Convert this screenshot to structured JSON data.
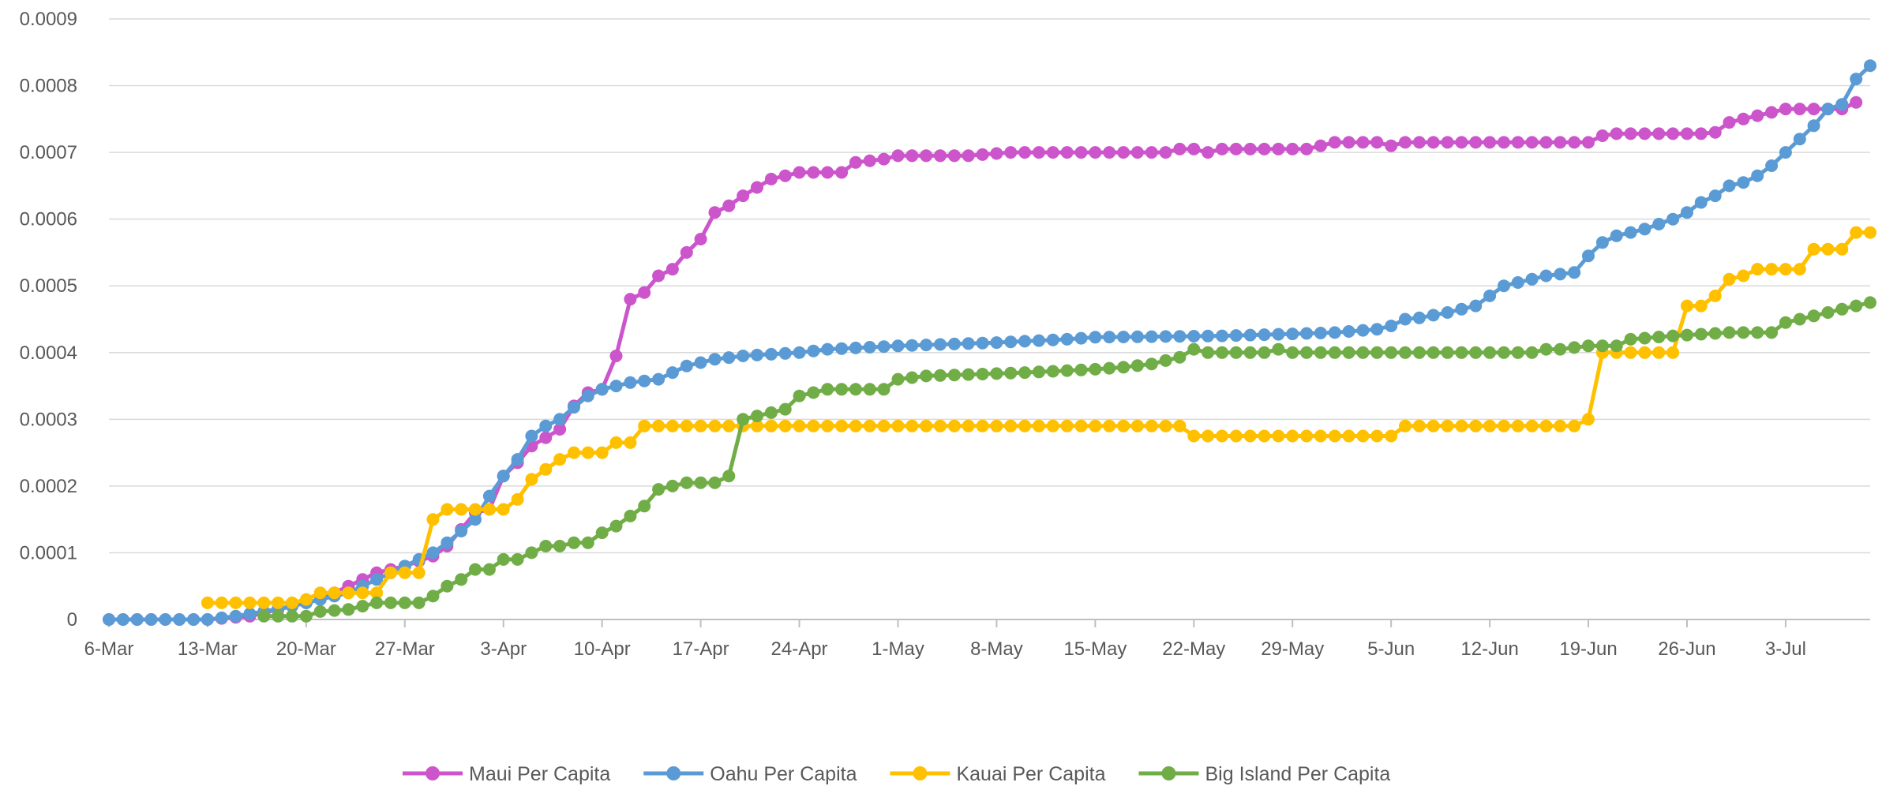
{
  "chart_data": {
    "type": "line",
    "title": "",
    "xlabel": "",
    "ylabel": "",
    "x_start": "6-Mar",
    "x_tick_labels": [
      "6-Mar",
      "13-Mar",
      "20-Mar",
      "27-Mar",
      "3-Apr",
      "10-Apr",
      "17-Apr",
      "24-Apr",
      "1-May",
      "8-May",
      "15-May",
      "22-May",
      "29-May",
      "5-Jun",
      "12-Jun",
      "19-Jun",
      "26-Jun",
      "3-Jul"
    ],
    "y_tick_labels": [
      "0",
      "0.0001",
      "0.0002",
      "0.0003",
      "0.0004",
      "0.0005",
      "0.0006",
      "0.0007",
      "0.0008",
      "0.0009"
    ],
    "ylim": [
      0,
      0.0009
    ],
    "grid": "horizontal",
    "legend_position": "bottom",
    "series": [
      {
        "name": "Maui Per Capita",
        "color": "#CC55CC",
        "points": [
          [
            "6-Mar",
            0
          ],
          [
            "13-Mar",
            0
          ],
          [
            "16-Mar",
            5e-06
          ],
          [
            "19-Mar",
            2e-05
          ],
          [
            "21-Mar",
            3e-05
          ],
          [
            "23-Mar",
            5e-05
          ],
          [
            "25-Mar",
            7e-05
          ],
          [
            "27-Mar",
            8e-05
          ],
          [
            "29-Mar",
            9.5e-05
          ],
          [
            "30-Mar",
            0.00011
          ],
          [
            "1-Apr",
            0.00016
          ],
          [
            "2-Apr",
            0.000165
          ],
          [
            "3-Apr",
            0.000215
          ],
          [
            "4-Apr",
            0.000235
          ],
          [
            "5-Apr",
            0.00026
          ],
          [
            "7-Apr",
            0.000285
          ],
          [
            "8-Apr",
            0.00032
          ],
          [
            "9-Apr",
            0.00034
          ],
          [
            "10-Apr",
            0.000345
          ],
          [
            "11-Apr",
            0.000395
          ],
          [
            "12-Apr",
            0.00048
          ],
          [
            "13-Apr",
            0.00049
          ],
          [
            "14-Apr",
            0.000515
          ],
          [
            "15-Apr",
            0.000525
          ],
          [
            "16-Apr",
            0.00055
          ],
          [
            "17-Apr",
            0.00057
          ],
          [
            "18-Apr",
            0.00061
          ],
          [
            "19-Apr",
            0.00062
          ],
          [
            "20-Apr",
            0.000635
          ],
          [
            "22-Apr",
            0.00066
          ],
          [
            "24-Apr",
            0.00067
          ],
          [
            "27-Apr",
            0.00067
          ],
          [
            "28-Apr",
            0.000685
          ],
          [
            "30-Apr",
            0.00069
          ],
          [
            "1-May",
            0.000695
          ],
          [
            "6-May",
            0.000695
          ],
          [
            "9-May",
            0.0007
          ],
          [
            "20-May",
            0.0007
          ],
          [
            "21-May",
            0.000705
          ],
          [
            "22-May",
            0.000705
          ],
          [
            "23-May",
            0.0007
          ],
          [
            "24-May",
            0.000705
          ],
          [
            "30-May",
            0.000705
          ],
          [
            "1-Jun",
            0.000715
          ],
          [
            "4-Jun",
            0.000715
          ],
          [
            "5-Jun",
            0.00071
          ],
          [
            "6-Jun",
            0.000715
          ],
          [
            "19-Jun",
            0.000715
          ],
          [
            "20-Jun",
            0.000725
          ],
          [
            "21-Jun",
            0.000728
          ],
          [
            "27-Jun",
            0.000728
          ],
          [
            "28-Jun",
            0.00073
          ],
          [
            "29-Jun",
            0.000745
          ],
          [
            "2-Jul",
            0.00076
          ],
          [
            "3-Jul",
            0.000765
          ],
          [
            "6-Jul",
            0.000765
          ],
          [
            "7-Jul",
            0.000765
          ],
          [
            "8-Jul",
            0.000775
          ]
        ]
      },
      {
        "name": "Oahu Per Capita",
        "color": "#5B9BD5",
        "points": [
          [
            "6-Mar",
            0
          ],
          [
            "13-Mar",
            0
          ],
          [
            "15-Mar",
            5e-06
          ],
          [
            "17-Mar",
            1.2e-05
          ],
          [
            "19-Mar",
            2e-05
          ],
          [
            "21-Mar",
            3e-05
          ],
          [
            "23-Mar",
            4e-05
          ],
          [
            "25-Mar",
            6e-05
          ],
          [
            "27-Mar",
            8e-05
          ],
          [
            "29-Mar",
            0.0001
          ],
          [
            "30-Mar",
            0.000115
          ],
          [
            "1-Apr",
            0.00015
          ],
          [
            "2-Apr",
            0.000185
          ],
          [
            "3-Apr",
            0.000215
          ],
          [
            "4-Apr",
            0.00024
          ],
          [
            "5-Apr",
            0.000275
          ],
          [
            "6-Apr",
            0.00029
          ],
          [
            "7-Apr",
            0.0003
          ],
          [
            "8-Apr",
            0.000318
          ],
          [
            "9-Apr",
            0.000335
          ],
          [
            "10-Apr",
            0.000345
          ],
          [
            "11-Apr",
            0.00035
          ],
          [
            "12-Apr",
            0.000355
          ],
          [
            "14-Apr",
            0.00036
          ],
          [
            "16-Apr",
            0.00038
          ],
          [
            "18-Apr",
            0.00039
          ],
          [
            "20-Apr",
            0.000395
          ],
          [
            "24-Apr",
            0.0004
          ],
          [
            "26-Apr",
            0.000405
          ],
          [
            "1-May",
            0.00041
          ],
          [
            "8-May",
            0.000415
          ],
          [
            "13-May",
            0.00042
          ],
          [
            "15-May",
            0.000423
          ],
          [
            "24-May",
            0.000425
          ],
          [
            "29-May",
            0.000428
          ],
          [
            "1-Jun",
            0.00043
          ],
          [
            "4-Jun",
            0.000435
          ],
          [
            "5-Jun",
            0.00044
          ],
          [
            "6-Jun",
            0.00045
          ],
          [
            "7-Jun",
            0.000452
          ],
          [
            "9-Jun",
            0.00046
          ],
          [
            "11-Jun",
            0.00047
          ],
          [
            "12-Jun",
            0.000485
          ],
          [
            "13-Jun",
            0.0005
          ],
          [
            "14-Jun",
            0.000505
          ],
          [
            "16-Jun",
            0.000515
          ],
          [
            "18-Jun",
            0.00052
          ],
          [
            "19-Jun",
            0.000545
          ],
          [
            "20-Jun",
            0.000565
          ],
          [
            "21-Jun",
            0.000575
          ],
          [
            "23-Jun",
            0.000585
          ],
          [
            "25-Jun",
            0.0006
          ],
          [
            "26-Jun",
            0.00061
          ],
          [
            "27-Jun",
            0.000625
          ],
          [
            "28-Jun",
            0.000635
          ],
          [
            "29-Jun",
            0.00065
          ],
          [
            "30-Jun",
            0.000655
          ],
          [
            "1-Jul",
            0.000665
          ],
          [
            "2-Jul",
            0.00068
          ],
          [
            "3-Jul",
            0.0007
          ],
          [
            "4-Jul",
            0.00072
          ],
          [
            "5-Jul",
            0.00074
          ],
          [
            "6-Jul",
            0.000765
          ],
          [
            "7-Jul",
            0.000772
          ],
          [
            "8-Jul",
            0.00081
          ],
          [
            "9-Jul",
            0.00083
          ]
        ]
      },
      {
        "name": "Kauai Per Capita",
        "color": "#FFC000",
        "points": [
          [
            "13-Mar",
            2.5e-05
          ],
          [
            "19-Mar",
            2.5e-05
          ],
          [
            "20-Mar",
            3e-05
          ],
          [
            "21-Mar",
            4e-05
          ],
          [
            "25-Mar",
            4e-05
          ],
          [
            "26-Mar",
            7e-05
          ],
          [
            "28-Mar",
            7e-05
          ],
          [
            "29-Mar",
            0.00015
          ],
          [
            "30-Mar",
            0.000165
          ],
          [
            "3-Apr",
            0.000165
          ],
          [
            "4-Apr",
            0.00018
          ],
          [
            "5-Apr",
            0.00021
          ],
          [
            "6-Apr",
            0.000225
          ],
          [
            "7-Apr",
            0.00024
          ],
          [
            "8-Apr",
            0.00025
          ],
          [
            "10-Apr",
            0.00025
          ],
          [
            "11-Apr",
            0.000265
          ],
          [
            "12-Apr",
            0.000265
          ],
          [
            "13-Apr",
            0.00029
          ],
          [
            "21-May",
            0.00029
          ],
          [
            "22-May",
            0.000275
          ],
          [
            "5-Jun",
            0.000275
          ],
          [
            "6-Jun",
            0.00029
          ],
          [
            "18-Jun",
            0.00029
          ],
          [
            "19-Jun",
            0.0003
          ],
          [
            "20-Jun",
            0.0004
          ],
          [
            "25-Jun",
            0.0004
          ],
          [
            "26-Jun",
            0.00047
          ],
          [
            "27-Jun",
            0.00047
          ],
          [
            "28-Jun",
            0.000485
          ],
          [
            "29-Jun",
            0.00051
          ],
          [
            "30-Jun",
            0.000515
          ],
          [
            "1-Jul",
            0.000525
          ],
          [
            "4-Jul",
            0.000525
          ],
          [
            "5-Jul",
            0.000555
          ],
          [
            "7-Jul",
            0.000555
          ],
          [
            "8-Jul",
            0.00058
          ],
          [
            "9-Jul",
            0.00058
          ]
        ]
      },
      {
        "name": "Big Island Per Capita",
        "color": "#70AD47",
        "points": [
          [
            "17-Mar",
            5e-06
          ],
          [
            "20-Mar",
            5e-06
          ],
          [
            "21-Mar",
            1.2e-05
          ],
          [
            "23-Mar",
            1.5e-05
          ],
          [
            "25-Mar",
            2.5e-05
          ],
          [
            "28-Mar",
            2.5e-05
          ],
          [
            "29-Mar",
            3.5e-05
          ],
          [
            "30-Mar",
            5e-05
          ],
          [
            "31-Mar",
            6e-05
          ],
          [
            "1-Apr",
            7.5e-05
          ],
          [
            "2-Apr",
            7.5e-05
          ],
          [
            "3-Apr",
            9e-05
          ],
          [
            "4-Apr",
            9e-05
          ],
          [
            "5-Apr",
            0.0001
          ],
          [
            "6-Apr",
            0.00011
          ],
          [
            "7-Apr",
            0.00011
          ],
          [
            "8-Apr",
            0.000115
          ],
          [
            "9-Apr",
            0.000115
          ],
          [
            "10-Apr",
            0.00013
          ],
          [
            "11-Apr",
            0.00014
          ],
          [
            "12-Apr",
            0.000155
          ],
          [
            "13-Apr",
            0.00017
          ],
          [
            "14-Apr",
            0.000195
          ],
          [
            "15-Apr",
            0.0002
          ],
          [
            "16-Apr",
            0.000205
          ],
          [
            "17-Apr",
            0.000205
          ],
          [
            "18-Apr",
            0.000205
          ],
          [
            "19-Apr",
            0.000215
          ],
          [
            "20-Apr",
            0.0003
          ],
          [
            "21-Apr",
            0.000305
          ],
          [
            "22-Apr",
            0.00031
          ],
          [
            "23-Apr",
            0.000315
          ],
          [
            "24-Apr",
            0.000335
          ],
          [
            "25-Apr",
            0.00034
          ],
          [
            "26-Apr",
            0.000345
          ],
          [
            "30-Apr",
            0.000345
          ],
          [
            "1-May",
            0.00036
          ],
          [
            "3-May",
            0.000365
          ],
          [
            "10-May",
            0.00037
          ],
          [
            "15-May",
            0.000375
          ],
          [
            "17-May",
            0.000378
          ],
          [
            "19-May",
            0.000383
          ],
          [
            "21-May",
            0.000393
          ],
          [
            "22-May",
            0.000405
          ],
          [
            "23-May",
            0.0004
          ],
          [
            "27-May",
            0.0004
          ],
          [
            "28-May",
            0.000405
          ],
          [
            "29-May",
            0.0004
          ],
          [
            "15-Jun",
            0.0004
          ],
          [
            "16-Jun",
            0.000405
          ],
          [
            "17-Jun",
            0.000405
          ],
          [
            "19-Jun",
            0.00041
          ],
          [
            "21-Jun",
            0.00041
          ],
          [
            "22-Jun",
            0.00042
          ],
          [
            "25-Jun",
            0.000425
          ],
          [
            "29-Jun",
            0.00043
          ],
          [
            "2-Jul",
            0.00043
          ],
          [
            "3-Jul",
            0.000445
          ],
          [
            "5-Jul",
            0.000455
          ],
          [
            "6-Jul",
            0.00046
          ],
          [
            "7-Jul",
            0.000465
          ],
          [
            "8-Jul",
            0.00047
          ],
          [
            "9-Jul",
            0.000475
          ]
        ]
      }
    ]
  }
}
